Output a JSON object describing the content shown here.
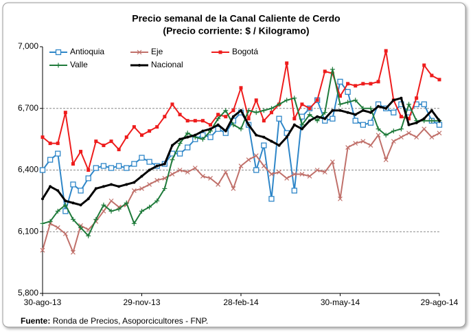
{
  "chart_data": {
    "type": "line",
    "title": "Precio semanal de la Canal Caliente de Cerdo",
    "subtitle": "(Precio corriente: $ / Kilogramo)",
    "source_label": "Fuente:",
    "source": "Ronda de Precios, Asoporcicultores  - FNP.",
    "categories": [
      "30-ago-13",
      null,
      null,
      null,
      null,
      null,
      null,
      null,
      null,
      null,
      null,
      null,
      null,
      "29-nov-13",
      null,
      null,
      null,
      null,
      null,
      null,
      null,
      null,
      null,
      null,
      null,
      null,
      "28-feb-14",
      null,
      null,
      null,
      null,
      null,
      null,
      null,
      null,
      null,
      null,
      null,
      null,
      "30-may-14",
      null,
      null,
      null,
      null,
      null,
      null,
      null,
      null,
      null,
      null,
      null,
      null,
      "29-ago-14"
    ],
    "ylim": [
      5800,
      7000
    ],
    "yticks": [
      {
        "value": 5800,
        "label": "5,800"
      },
      {
        "value": 6100,
        "label": "6,100"
      },
      {
        "value": 6400,
        "label": "6,400"
      },
      {
        "value": 6700,
        "label": "6,700"
      },
      {
        "value": 7000,
        "label": "7,000"
      }
    ],
    "grid": true,
    "legend": "top-left",
    "series": [
      {
        "name": "Antioquia",
        "color": "#2e86c8",
        "marker": "open-square",
        "values": [
          6400,
          6450,
          6480,
          6200,
          6330,
          6300,
          6360,
          6410,
          6420,
          6410,
          6420,
          6410,
          6430,
          6460,
          6440,
          6420,
          6430,
          6480,
          6480,
          6510,
          6550,
          6570,
          6560,
          6600,
          6580,
          6640,
          6680,
          6620,
          6400,
          6520,
          6260,
          6650,
          6580,
          6300,
          6660,
          6700,
          6740,
          6640,
          6650,
          6830,
          6780,
          6640,
          6620,
          6630,
          6720,
          6700,
          6680,
          6720,
          6680,
          6720,
          6720,
          6640,
          6620
        ]
      },
      {
        "name": "Eje",
        "color": "#c0706a",
        "marker": "x",
        "values": [
          6010,
          6140,
          6120,
          6090,
          6000,
          6130,
          6110,
          6150,
          6200,
          6250,
          6220,
          6230,
          6300,
          6310,
          6330,
          6350,
          6360,
          6380,
          6400,
          6390,
          6410,
          6370,
          6360,
          6330,
          6390,
          6310,
          6420,
          6450,
          6470,
          6420,
          6380,
          6390,
          6360,
          6380,
          6380,
          6370,
          6400,
          6390,
          6440,
          6260,
          6510,
          6530,
          6540,
          6520,
          6570,
          6450,
          6540,
          6560,
          6580,
          6560,
          6600,
          6560,
          6580
        ]
      },
      {
        "name": "Bogotá",
        "color": "#ee1c1c",
        "marker": "square",
        "values": [
          6560,
          6530,
          6530,
          6680,
          6430,
          6490,
          6400,
          6540,
          6520,
          6540,
          6500,
          6560,
          6610,
          6570,
          6590,
          6610,
          6660,
          6720,
          6670,
          6640,
          6640,
          6640,
          6620,
          6670,
          6660,
          6690,
          6800,
          6650,
          6740,
          6640,
          6680,
          6720,
          6920,
          6650,
          6720,
          6700,
          6740,
          6880,
          6870,
          6760,
          6820,
          6810,
          6820,
          6820,
          6830,
          6980,
          6740,
          6660,
          6650,
          6750,
          6910,
          6860,
          6840
        ]
      },
      {
        "name": "Valle",
        "color": "#1e7a3a",
        "marker": "plus",
        "values": [
          6140,
          6150,
          6200,
          6230,
          6160,
          6120,
          6080,
          6160,
          6230,
          6200,
          6210,
          6240,
          6140,
          6200,
          6220,
          6250,
          6310,
          6450,
          6530,
          6580,
          6560,
          6550,
          6590,
          6650,
          6690,
          6620,
          6600,
          6690,
          6680,
          6690,
          6700,
          6720,
          6740,
          6750,
          6620,
          6670,
          6640,
          6680,
          6890,
          6720,
          6730,
          6740,
          6700,
          6700,
          6600,
          6570,
          6590,
          6600,
          6720,
          6640,
          6640,
          6640,
          6640
        ]
      },
      {
        "name": "Nacional",
        "color": "#000000",
        "marker": "dot",
        "values": [
          6260,
          6320,
          6300,
          6250,
          6240,
          6230,
          6260,
          6310,
          6320,
          6330,
          6320,
          6330,
          6340,
          6370,
          6400,
          6420,
          6430,
          6520,
          6550,
          6560,
          6570,
          6590,
          6600,
          6620,
          6590,
          6660,
          6690,
          6620,
          6570,
          6560,
          6540,
          6520,
          6560,
          6620,
          6600,
          6640,
          6660,
          6650,
          6690,
          6690,
          6680,
          6670,
          6690,
          6680,
          6710,
          6700,
          6740,
          6750,
          6620,
          6630,
          6650,
          6690,
          6640
        ]
      }
    ]
  }
}
